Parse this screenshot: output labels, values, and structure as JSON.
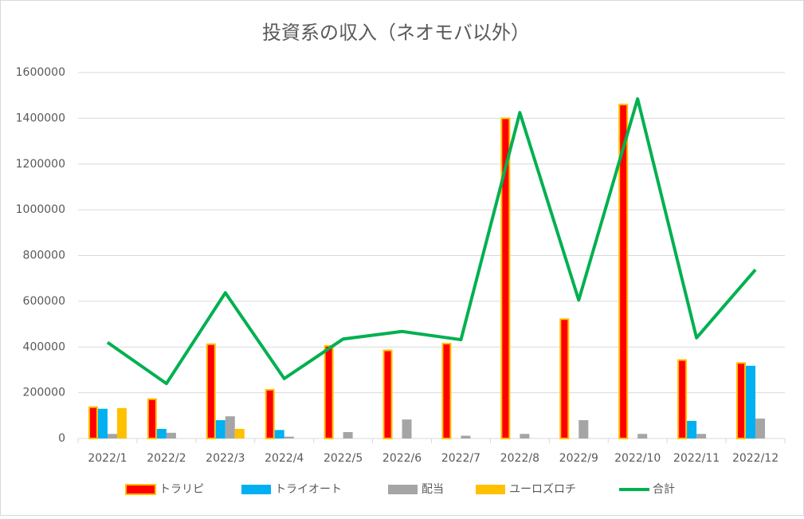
{
  "chart_data": {
    "type": "bar_line",
    "title": "投資系の収入（ネオモバ以外）",
    "categories": [
      "2022/1",
      "2022/2",
      "2022/3",
      "2022/4",
      "2022/5",
      "2022/6",
      "2022/7",
      "2022/8",
      "2022/9",
      "2022/10",
      "2022/11",
      "2022/12"
    ],
    "series": [
      {
        "name": "トラリピ",
        "type": "bar",
        "color": "#ff0000",
        "border_color": "#ffc000",
        "values": [
          137000,
          172000,
          412000,
          213000,
          405000,
          385000,
          415000,
          1400000,
          522000,
          1460000,
          343000,
          330000
        ]
      },
      {
        "name": "トライオート",
        "type": "bar",
        "color": "#00b0f0",
        "values": [
          130000,
          42000,
          80000,
          37000,
          0,
          0,
          0,
          0,
          0,
          0,
          77000,
          318000
        ]
      },
      {
        "name": "配当",
        "type": "bar",
        "color": "#a5a5a5",
        "values": [
          20000,
          25000,
          97000,
          8000,
          28000,
          83000,
          12000,
          20000,
          80000,
          20000,
          20000,
          87000
        ]
      },
      {
        "name": "ユーロズロチ",
        "type": "bar",
        "color": "#ffc000",
        "values": [
          133000,
          0,
          42000,
          0,
          0,
          0,
          0,
          0,
          0,
          0,
          0,
          0
        ]
      },
      {
        "name": "合計",
        "type": "line",
        "color": "#00b050",
        "values": [
          420000,
          240000,
          637000,
          262000,
          435000,
          468000,
          432000,
          1425000,
          605000,
          1485000,
          440000,
          738000
        ]
      }
    ],
    "ylim": [
      0,
      1600000
    ],
    "yticks": [
      0,
      200000,
      400000,
      600000,
      800000,
      1000000,
      1200000,
      1400000,
      1600000
    ],
    "grid": true,
    "legend": "bottom"
  }
}
